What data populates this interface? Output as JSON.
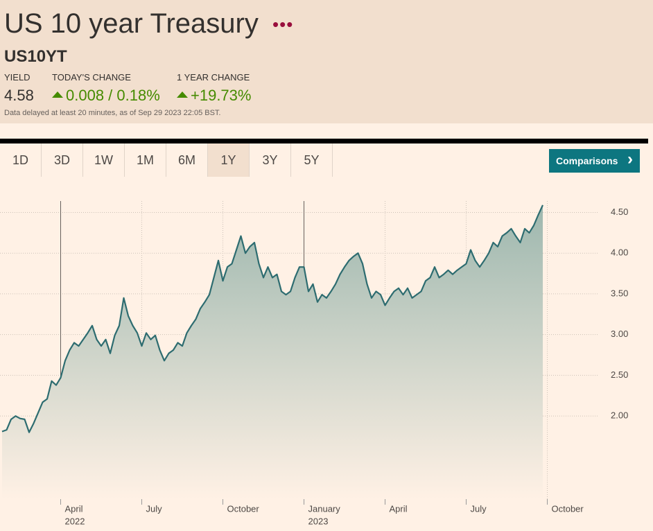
{
  "header": {
    "title": "US 10 year Treasury",
    "symbol": "US10YT",
    "stats": [
      {
        "label": "YIELD",
        "value": "4.58"
      },
      {
        "label": "TODAY'S CHANGE",
        "value": "0.008 / 0.18%"
      },
      {
        "label": "1 YEAR CHANGE",
        "value": "+19.73%"
      }
    ],
    "note": "Data delayed at least 20 minutes, as of Sep 29 2023 22:05 BST."
  },
  "tabs": [
    "1D",
    "3D",
    "1W",
    "1M",
    "6M",
    "1Y",
    "3Y",
    "5Y"
  ],
  "selected_tab": "1Y",
  "button": "Comparisons",
  "chart_data": {
    "type": "line",
    "color": "#2d6c70",
    "grid": true,
    "categories": [
      null,
      null,
      null,
      null,
      null,
      null,
      null,
      null,
      null,
      null,
      null,
      null,
      null,
      "April",
      null,
      null,
      null,
      null,
      null,
      null,
      null,
      null,
      null,
      null,
      null,
      null,
      null,
      null,
      null,
      null,
      null,
      "July",
      null,
      null,
      null,
      null,
      null,
      null,
      null,
      null,
      null,
      null,
      null,
      null,
      null,
      null,
      null,
      null,
      null,
      "October",
      null,
      null,
      null,
      null,
      null,
      null,
      null,
      null,
      null,
      null,
      null,
      null,
      null,
      null,
      null,
      null,
      null,
      "January",
      null,
      null,
      null,
      null,
      null,
      null,
      null,
      null,
      null,
      null,
      null,
      null,
      null,
      null,
      null,
      null,
      null,
      "April",
      null,
      null,
      null,
      null,
      null,
      null,
      null,
      null,
      null,
      null,
      null,
      null,
      null,
      null,
      null,
      null,
      null,
      "July",
      null,
      null,
      null,
      null,
      null,
      null,
      null,
      null,
      null,
      null,
      null,
      null,
      null,
      null,
      null,
      null,
      null,
      "October"
    ],
    "category_sublabels": [
      null,
      null,
      null,
      null,
      null,
      null,
      null,
      null,
      null,
      null,
      null,
      null,
      null,
      "2022",
      null,
      null,
      null,
      null,
      null,
      null,
      null,
      null,
      null,
      null,
      null,
      null,
      null,
      null,
      null,
      null,
      null,
      null,
      null,
      null,
      null,
      null,
      null,
      null,
      null,
      null,
      null,
      null,
      null,
      null,
      null,
      null,
      null,
      null,
      null,
      null,
      null,
      null,
      null,
      null,
      null,
      null,
      null,
      null,
      null,
      null,
      null,
      null,
      null,
      null,
      null,
      null,
      null,
      "2023",
      null,
      null,
      null,
      null,
      null,
      null,
      null,
      null,
      null,
      null,
      null,
      null,
      null,
      null,
      null,
      null,
      null,
      null,
      null,
      null,
      null,
      null,
      null,
      null,
      null,
      null,
      null,
      null,
      null,
      null,
      null,
      null,
      null,
      null,
      null,
      null,
      null,
      null,
      null,
      null,
      null,
      null,
      null,
      null,
      null,
      null,
      null,
      null,
      null,
      null,
      null,
      null,
      null,
      null,
      null,
      null,
      null,
      null
    ],
    "values": [
      1.81,
      1.83,
      1.96,
      2.0,
      1.97,
      1.96,
      1.8,
      1.91,
      2.04,
      2.17,
      2.21,
      2.43,
      2.38,
      2.47,
      2.68,
      2.81,
      2.9,
      2.86,
      2.94,
      3.02,
      3.11,
      2.94,
      2.86,
      2.94,
      2.77,
      2.99,
      3.11,
      3.45,
      3.23,
      3.11,
      3.02,
      2.86,
      3.02,
      2.94,
      2.99,
      2.81,
      2.68,
      2.77,
      2.81,
      2.9,
      2.86,
      3.02,
      3.11,
      3.19,
      3.32,
      3.4,
      3.49,
      3.7,
      3.91,
      3.66,
      3.83,
      3.87,
      4.04,
      4.21,
      4.0,
      4.08,
      4.13,
      3.87,
      3.7,
      3.83,
      3.7,
      3.74,
      3.53,
      3.49,
      3.53,
      3.7,
      3.83,
      3.83,
      3.53,
      3.62,
      3.4,
      3.49,
      3.45,
      3.53,
      3.62,
      3.74,
      3.83,
      3.91,
      3.96,
      4.0,
      3.87,
      3.62,
      3.45,
      3.53,
      3.49,
      3.36,
      3.45,
      3.53,
      3.57,
      3.49,
      3.57,
      3.45,
      3.49,
      3.53,
      3.66,
      3.7,
      3.83,
      3.7,
      3.74,
      3.79,
      3.74,
      3.79,
      3.83,
      3.87,
      4.04,
      3.91,
      3.83,
      3.91,
      4.0,
      4.13,
      4.08,
      4.21,
      4.25,
      4.3,
      4.21,
      4.13,
      4.3,
      4.25,
      4.34,
      4.47,
      4.59,
      null
    ],
    "ylim": [
      0.98,
      4.64
    ],
    "yticks": [
      {
        "value": 2,
        "label": "2.00"
      },
      {
        "value": 2.5,
        "label": "2.50"
      },
      {
        "value": 3,
        "label": "3.00"
      },
      {
        "value": 3.5,
        "label": "3.50"
      },
      {
        "value": 4,
        "label": "4.00"
      },
      {
        "value": 4.5,
        "label": "4.50"
      }
    ]
  }
}
